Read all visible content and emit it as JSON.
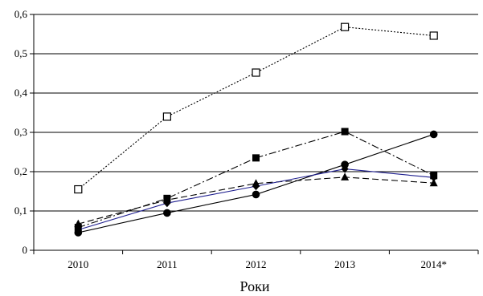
{
  "chart_data": {
    "type": "line",
    "categories": [
      "2010",
      "2011",
      "2012",
      "2013",
      "2014*"
    ],
    "xlabel": "Роки",
    "ylabel": "",
    "ylim": [
      0,
      0.6
    ],
    "yticks": [
      "0",
      "0,1",
      "0,2",
      "0,3",
      "0,4",
      "0,5",
      "0,6"
    ],
    "grid": true,
    "series": [
      {
        "values": [
          0.155,
          0.34,
          0.452,
          0.568,
          0.546
        ],
        "color": "#000000",
        "dash": "dotted",
        "marker": "square-open"
      },
      {
        "values": [
          0.058,
          0.132,
          0.235,
          0.302,
          0.19
        ],
        "color": "#000000",
        "dash": "dash-dot",
        "marker": "square-filled"
      },
      {
        "values": [
          0.045,
          0.095,
          0.142,
          0.218,
          0.295
        ],
        "color": "#000000",
        "dash": "solid",
        "marker": "circle-filled"
      },
      {
        "values": [
          0.067,
          0.128,
          0.17,
          0.186,
          0.171
        ],
        "color": "#000000",
        "dash": "dashed",
        "marker": "triangle-filled"
      },
      {
        "values": [
          0.052,
          0.12,
          0.163,
          0.207,
          0.185
        ],
        "color": "#1f1f8f",
        "dash": "solid",
        "marker": "diamond-filled"
      }
    ]
  }
}
